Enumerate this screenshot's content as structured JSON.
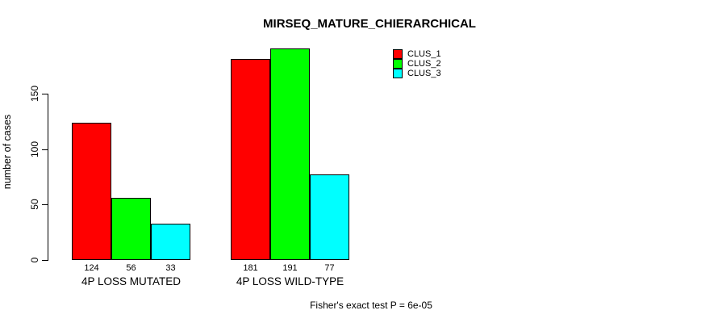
{
  "background": "#ffffff",
  "chart_data": {
    "type": "bar",
    "title": "MIRSEQ_MATURE_CHIERARCHICAL",
    "xlabel": "",
    "ylabel": "number of cases",
    "categories": [
      "4P LOSS MUTATED",
      "4P LOSS WILD-TYPE"
    ],
    "series": [
      {
        "name": "CLUS_1",
        "color": "#ff0000",
        "values": [
          124,
          181
        ]
      },
      {
        "name": "CLUS_2",
        "color": "#00ff00",
        "values": [
          56,
          191
        ]
      },
      {
        "name": "CLUS_3",
        "color": "#00ffff",
        "values": [
          33,
          77
        ]
      }
    ],
    "bar_value_labels": [
      [
        "124",
        "56",
        "33"
      ],
      [
        "181",
        "191",
        "77"
      ]
    ],
    "yticks": [
      0,
      50,
      100,
      150
    ],
    "ylim": [
      0,
      150
    ],
    "grid": false,
    "legend_position": "top-right",
    "legend_items": [
      "CLUS_1",
      "CLUS_2",
      "CLUS_3"
    ],
    "bar_border_color": "#000000",
    "annotation": "Fisher's exact test P = 6e-05"
  }
}
